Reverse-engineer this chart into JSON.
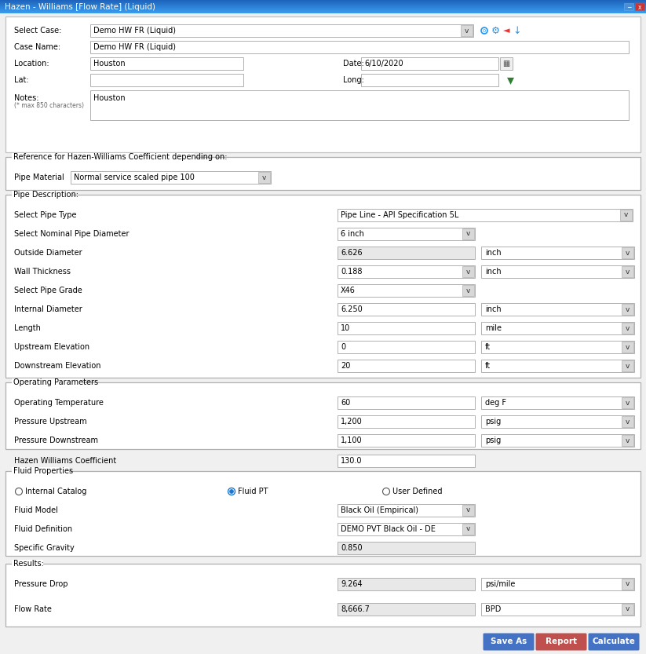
{
  "title": "Hazen - Williams [Flow Rate] (Liquid)",
  "bg_color": "#f0f0f0",
  "select_case_label": "Select Case:",
  "select_case_value": "Demo HW FR (Liquid)",
  "case_name_label": "Case Name:",
  "case_name_value": "Demo HW FR (Liquid)",
  "location_label": "Location:",
  "location_value": "Houston",
  "date_label": "Date:",
  "date_value": "6/10/2020",
  "lat_label": "Lat:",
  "long_label": "Long:",
  "notes_label": "Notes:",
  "notes_subtext": "(* max 850 characters)",
  "notes_value": "Houston",
  "hw_coeff_ref": "Reference for Hazen-Williams Coefficient depending on:",
  "pipe_material_label": "Pipe Material",
  "pipe_material_value": "Normal service scaled pipe 100",
  "pipe_desc_label": "Pipe Description:",
  "pipe_type_label": "Select Pipe Type",
  "pipe_type_value": "Pipe Line - API Specification 5L",
  "nominal_diam_label": "Select Nominal Pipe Diameter",
  "nominal_diam_value": "6 inch",
  "outside_diam_label": "Outside Diameter",
  "outside_diam_value": "6.626",
  "outside_diam_unit": "inch",
  "wall_thick_label": "Wall Thickness",
  "wall_thick_value": "0.188",
  "wall_thick_unit": "inch",
  "pipe_grade_label": "Select Pipe Grade",
  "pipe_grade_value": "X46",
  "internal_diam_label": "Internal Diameter",
  "internal_diam_value": "6.250",
  "internal_diam_unit": "inch",
  "length_label": "Length",
  "length_value": "10",
  "length_unit": "mile",
  "upstream_elev_label": "Upstream Elevation",
  "upstream_elev_value": "0",
  "upstream_elev_unit": "ft",
  "downstream_elev_label": "Downstream Elevation",
  "downstream_elev_value": "20",
  "downstream_elev_unit": "ft",
  "op_params_label": "Operating Parameters",
  "op_temp_label": "Operating Temperature",
  "op_temp_value": "60",
  "op_temp_unit": "deg F",
  "pressure_up_label": "Pressure Upstream",
  "pressure_up_value": "1,200",
  "pressure_up_unit": "psig",
  "pressure_down_label": "Pressure Downstream",
  "pressure_down_value": "1,100",
  "pressure_down_unit": "psig",
  "hw_coeff_label": "Hazen Williams Coefficient",
  "hw_coeff_value": "130.0",
  "fluid_props_label": "Fluid Properties",
  "radio_internal": "Internal Catalog",
  "radio_fluid_pt": "Fluid PT",
  "radio_user_def": "User Defined",
  "fluid_model_label": "Fluid Model",
  "fluid_model_value": "Black Oil (Empirical)",
  "fluid_def_label": "Fluid Definition",
  "fluid_def_value": "DEMO PVT Black Oil - DE",
  "specific_grav_label": "Specific Gravity",
  "specific_grav_value": "0.850",
  "results_label": "Results:",
  "pressure_drop_label": "Pressure Drop",
  "pressure_drop_value": "9.264",
  "pressure_drop_unit": "psi/mile",
  "flow_rate_label": "Flow Rate",
  "flow_rate_value": "8,666.7",
  "flow_rate_unit": "BPD",
  "btn_save_color": "#4472c4",
  "btn_report_color": "#c0504d",
  "btn_calculate_color": "#4472c4",
  "btn_save_label": "Save As",
  "btn_report_label": "Report",
  "btn_calculate_label": "Calculate"
}
